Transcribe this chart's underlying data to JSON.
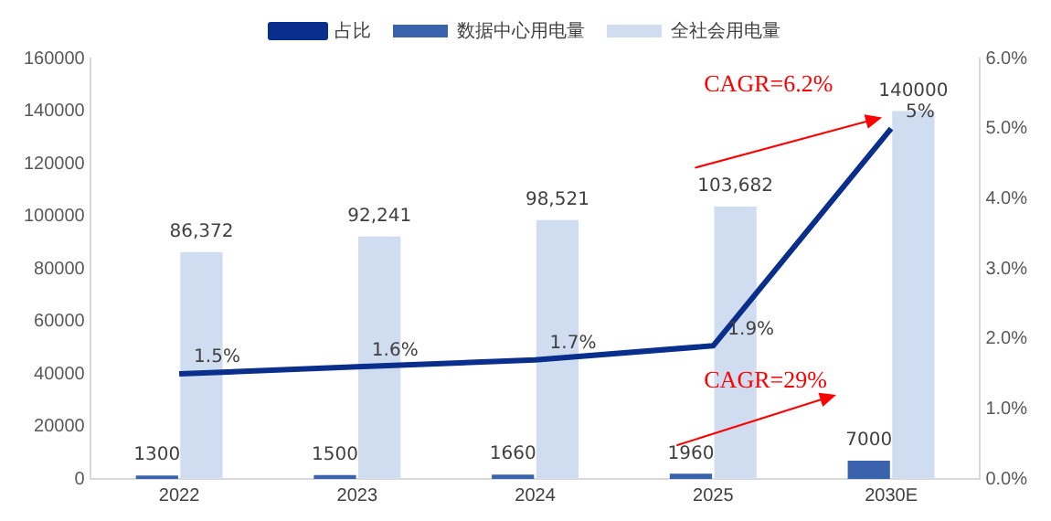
{
  "chart_data": {
    "type": "bar",
    "categories": [
      "2022",
      "2023",
      "2024",
      "2025",
      "2030E"
    ],
    "series": [
      {
        "name": "数据中心用电量",
        "color": "#3a62ad",
        "values": [
          1300,
          1500,
          1660,
          1960,
          7000
        ],
        "value_labels": [
          "1300",
          "1500",
          "1660",
          "1960",
          "7000"
        ]
      },
      {
        "name": "全社会用电量",
        "color": "#d0dcef",
        "values": [
          86372,
          92241,
          98521,
          103682,
          140000
        ],
        "value_labels": [
          "86,372",
          "92,241",
          "98,521",
          "103,682",
          "140000"
        ]
      },
      {
        "name": "占比",
        "type": "line",
        "axis": "y2",
        "color": "#0a2e8c",
        "values": [
          1.5,
          1.6,
          1.7,
          1.9,
          5
        ],
        "value_labels": [
          "1.5%",
          "1.6%",
          "1.7%",
          "1.9%",
          "5%"
        ],
        "marker": "none"
      }
    ],
    "ylim": [
      0,
      160000
    ],
    "yticks": [
      0,
      20000,
      40000,
      60000,
      80000,
      100000,
      120000,
      140000,
      160000
    ],
    "y2lim": [
      0,
      6
    ],
    "y2ticks": [
      {
        "value": 0,
        "label": "0.0%"
      },
      {
        "value": 1,
        "label": "1.0%"
      },
      {
        "value": 2,
        "label": "2.0%"
      },
      {
        "value": 3,
        "label": "3.0%"
      },
      {
        "value": 4,
        "label": "4.0%"
      },
      {
        "value": 5,
        "label": "5.0%"
      },
      {
        "value": 6,
        "label": "6.0%"
      }
    ],
    "annotations": [
      "CAGR=6.2%",
      "CAGR=29%"
    ],
    "grid": false,
    "legend": "top"
  }
}
